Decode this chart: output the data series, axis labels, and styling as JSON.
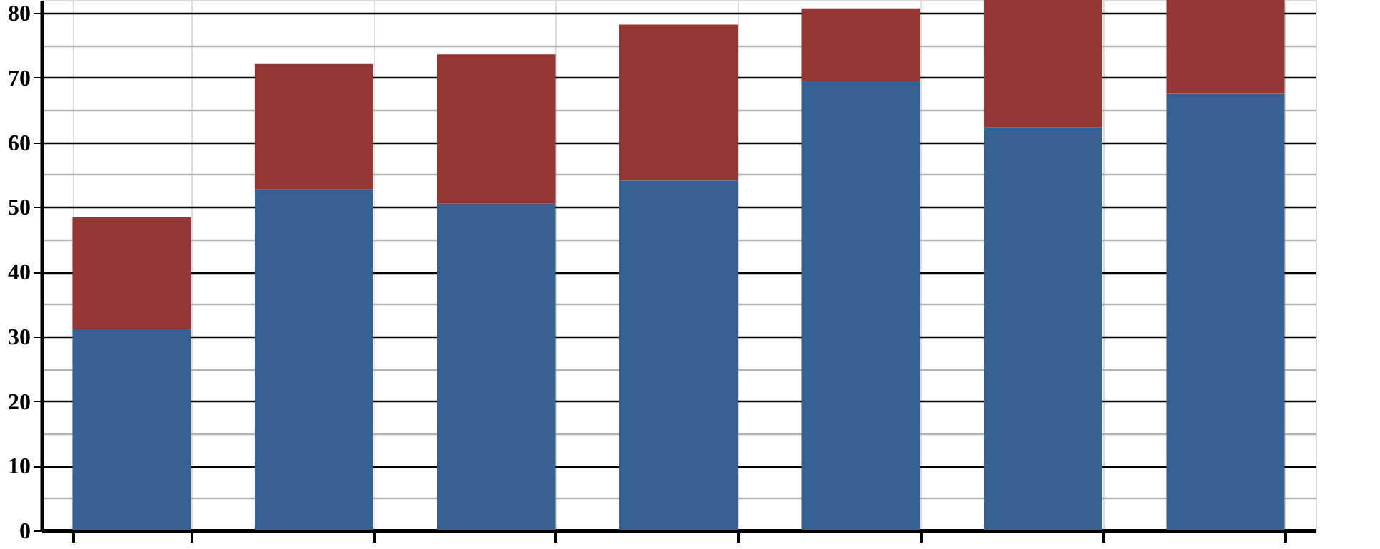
{
  "chart_data": {
    "type": "bar",
    "stacked": true,
    "categories": [
      null,
      null,
      null,
      null,
      null,
      null,
      null
    ],
    "series": [
      {
        "color": "#366092",
        "values": [
          31.1,
          52.7,
          50.5,
          54.1,
          69.5,
          62.3,
          67.5
        ]
      },
      {
        "color": "#943634",
        "values": [
          17.3,
          19.4,
          23.1,
          24.1,
          11.2,
          19.7,
          14.5
        ]
      }
    ],
    "ylim": [
      0,
      82
    ],
    "yticks": [
      0,
      {
        "value": 5,
        "label": null
      },
      10,
      {
        "value": 15,
        "label": null
      },
      20,
      {
        "value": 25,
        "label": null
      },
      30,
      {
        "value": 35,
        "label": null
      },
      40,
      {
        "value": 45,
        "label": null
      },
      50,
      {
        "value": 55,
        "label": null
      },
      60,
      {
        "value": 65,
        "label": null
      },
      70,
      {
        "value": 75,
        "label": null
      },
      80
    ],
    "grid": true,
    "legend": false,
    "tick_labels": "y"
  }
}
